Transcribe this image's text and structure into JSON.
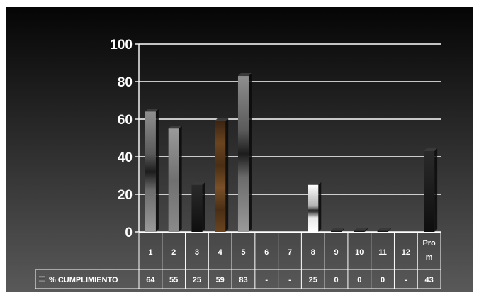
{
  "chart_data": {
    "type": "bar",
    "categories": [
      "1",
      "2",
      "3",
      "4",
      "5",
      "6",
      "7",
      "8",
      "9",
      "10",
      "11",
      "12",
      "Prom"
    ],
    "series": [
      {
        "name": "% CUMPLIMIENTO",
        "values": [
          64,
          55,
          25,
          59,
          83,
          null,
          null,
          25,
          0,
          0,
          0,
          null,
          43
        ],
        "labels": [
          "64",
          "55",
          "25",
          "59",
          "83",
          "-",
          "-",
          "25",
          "0",
          "0",
          "0",
          "-",
          "43"
        ]
      }
    ],
    "ylim": [
      0,
      100
    ],
    "yticks": [
      0,
      20,
      40,
      60,
      80,
      100
    ],
    "grid": true,
    "legend": "data-table-bottom-left",
    "colors": {
      "gridline": "#ffffff",
      "text": "#ffffff",
      "bar_gray": "#8a8a8a",
      "bar_dark": "#161616",
      "bar_brown": "#6b4420",
      "bar_silver": "#f2f2f2"
    }
  }
}
